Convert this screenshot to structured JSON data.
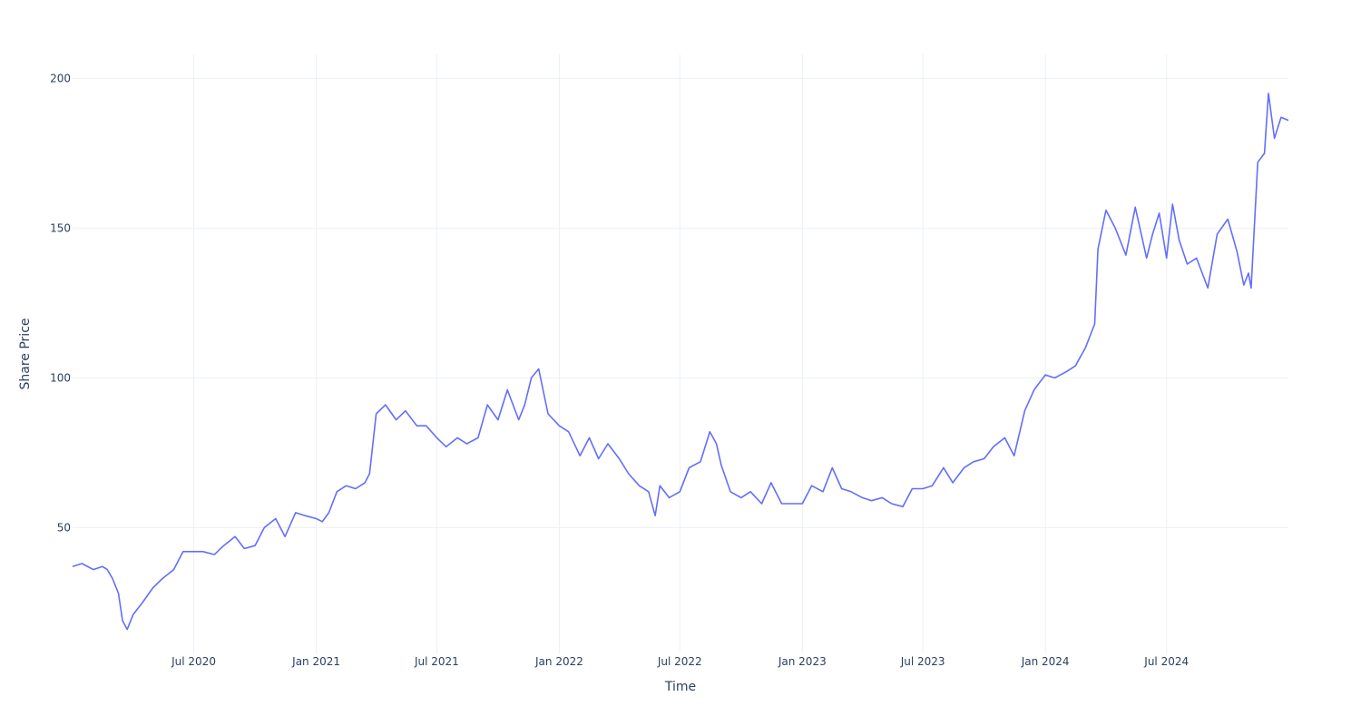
{
  "chart_data": {
    "type": "line",
    "title": "",
    "xlabel": "Time",
    "ylabel": "Share Price",
    "x_range": [
      "2020-01-01",
      "2024-12-31"
    ],
    "ylim": [
      8,
      208
    ],
    "x_ticks": [
      {
        "date": "2020-07-01",
        "label": "Jul 2020"
      },
      {
        "date": "2021-01-01",
        "label": "Jan 2021"
      },
      {
        "date": "2021-07-01",
        "label": "Jul 2021"
      },
      {
        "date": "2022-01-01",
        "label": "Jan 2022"
      },
      {
        "date": "2022-07-01",
        "label": "Jul 2022"
      },
      {
        "date": "2023-01-01",
        "label": "Jan 2023"
      },
      {
        "date": "2023-07-01",
        "label": "Jul 2023"
      },
      {
        "date": "2024-01-01",
        "label": "Jan 2024"
      },
      {
        "date": "2024-07-01",
        "label": "Jul 2024"
      }
    ],
    "y_ticks": [
      50,
      100,
      150,
      200
    ],
    "grid": true,
    "legend": "none",
    "line_color": "#636efa",
    "series": [
      {
        "x": [
          "2020-01-01",
          "2020-01-15",
          "2020-02-01",
          "2020-02-15",
          "2020-02-22",
          "2020-03-01",
          "2020-03-10",
          "2020-03-16",
          "2020-03-23",
          "2020-04-01",
          "2020-04-15",
          "2020-05-01",
          "2020-05-15",
          "2020-06-01",
          "2020-06-15",
          "2020-07-01",
          "2020-07-15",
          "2020-08-01",
          "2020-08-15",
          "2020-09-01",
          "2020-09-15",
          "2020-10-01",
          "2020-10-15",
          "2020-11-01",
          "2020-11-15",
          "2020-12-01",
          "2020-12-15",
          "2021-01-01",
          "2021-01-10",
          "2021-01-20",
          "2021-02-01",
          "2021-02-15",
          "2021-03-01",
          "2021-03-15",
          "2021-03-22",
          "2021-04-01",
          "2021-04-15",
          "2021-05-01",
          "2021-05-15",
          "2021-06-01",
          "2021-06-15",
          "2021-07-01",
          "2021-07-15",
          "2021-08-01",
          "2021-08-15",
          "2021-09-01",
          "2021-09-15",
          "2021-10-01",
          "2021-10-15",
          "2021-11-01",
          "2021-11-10",
          "2021-11-20",
          "2021-12-01",
          "2021-12-15",
          "2022-01-01",
          "2022-01-15",
          "2022-02-01",
          "2022-02-15",
          "2022-03-01",
          "2022-03-15",
          "2022-04-01",
          "2022-04-15",
          "2022-05-01",
          "2022-05-15",
          "2022-05-25",
          "2022-06-01",
          "2022-06-15",
          "2022-07-01",
          "2022-07-15",
          "2022-08-01",
          "2022-08-15",
          "2022-08-25",
          "2022-09-01",
          "2022-09-15",
          "2022-10-01",
          "2022-10-15",
          "2022-11-01",
          "2022-11-15",
          "2022-12-01",
          "2022-12-15",
          "2023-01-01",
          "2023-01-15",
          "2023-02-01",
          "2023-02-15",
          "2023-03-01",
          "2023-03-15",
          "2023-04-01",
          "2023-04-15",
          "2023-05-01",
          "2023-05-15",
          "2023-06-01",
          "2023-06-15",
          "2023-07-01",
          "2023-07-15",
          "2023-08-01",
          "2023-08-15",
          "2023-09-01",
          "2023-09-15",
          "2023-10-01",
          "2023-10-15",
          "2023-11-01",
          "2023-11-15",
          "2023-12-01",
          "2023-12-15",
          "2024-01-01",
          "2024-01-15",
          "2024-02-01",
          "2024-02-15",
          "2024-03-01",
          "2024-03-15",
          "2024-03-20",
          "2024-04-01",
          "2024-04-15",
          "2024-05-01",
          "2024-05-15",
          "2024-06-01",
          "2024-06-10",
          "2024-06-20",
          "2024-07-01",
          "2024-07-10",
          "2024-07-20",
          "2024-08-01",
          "2024-08-15",
          "2024-09-01",
          "2024-09-15",
          "2024-10-01",
          "2024-10-15",
          "2024-10-25",
          "2024-11-01",
          "2024-11-05",
          "2024-11-15",
          "2024-11-25",
          "2024-12-01",
          "2024-12-10",
          "2024-12-20",
          "2024-12-31"
        ],
        "y": [
          37,
          38,
          36,
          37,
          36,
          33,
          28,
          19,
          16,
          21,
          25,
          30,
          33,
          36,
          42,
          42,
          42,
          41,
          44,
          47,
          43,
          44,
          50,
          53,
          47,
          55,
          54,
          53,
          52,
          55,
          62,
          64,
          63,
          65,
          68,
          88,
          91,
          86,
          89,
          84,
          84,
          80,
          77,
          80,
          78,
          80,
          91,
          86,
          96,
          86,
          91,
          100,
          103,
          88,
          84,
          82,
          74,
          80,
          73,
          78,
          73,
          68,
          64,
          62,
          54,
          64,
          60,
          62,
          70,
          72,
          82,
          78,
          71,
          62,
          60,
          62,
          58,
          65,
          58,
          58,
          58,
          64,
          62,
          70,
          63,
          62,
          60,
          59,
          60,
          58,
          57,
          63,
          63,
          64,
          70,
          65,
          70,
          72,
          73,
          77,
          80,
          74,
          89,
          96,
          101,
          100,
          102,
          104,
          110,
          118,
          143,
          156,
          150,
          141,
          157,
          140,
          148,
          155,
          140,
          158,
          146,
          138,
          140,
          130,
          148,
          153,
          142,
          131,
          135,
          130,
          172,
          175,
          195,
          180,
          187,
          186
        ]
      }
    ]
  }
}
